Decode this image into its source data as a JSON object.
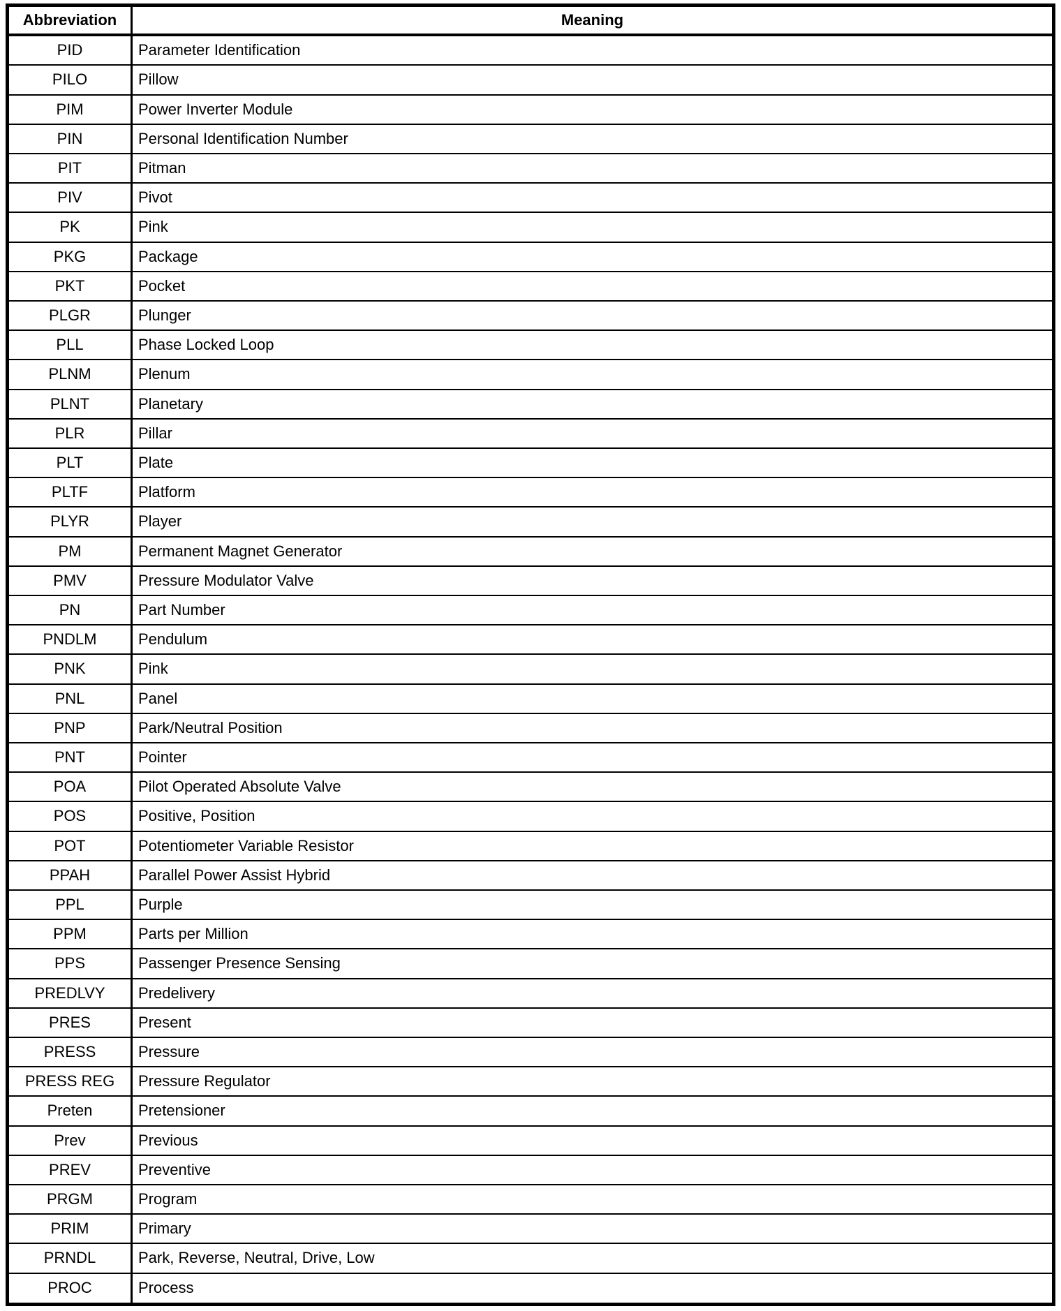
{
  "table": {
    "headers": [
      "Abbreviation",
      "Meaning"
    ],
    "rows": [
      [
        "PID",
        "Parameter Identification"
      ],
      [
        "PILO",
        "Pillow"
      ],
      [
        "PIM",
        "Power Inverter Module"
      ],
      [
        "PIN",
        "Personal Identification Number"
      ],
      [
        "PIT",
        "Pitman"
      ],
      [
        "PIV",
        "Pivot"
      ],
      [
        "PK",
        "Pink"
      ],
      [
        "PKG",
        "Package"
      ],
      [
        "PKT",
        "Pocket"
      ],
      [
        "PLGR",
        "Plunger"
      ],
      [
        "PLL",
        "Phase Locked Loop"
      ],
      [
        "PLNM",
        "Plenum"
      ],
      [
        "PLNT",
        "Planetary"
      ],
      [
        "PLR",
        "Pillar"
      ],
      [
        "PLT",
        "Plate"
      ],
      [
        "PLTF",
        "Platform"
      ],
      [
        "PLYR",
        "Player"
      ],
      [
        "PM",
        "Permanent Magnet Generator"
      ],
      [
        "PMV",
        "Pressure Modulator Valve"
      ],
      [
        "PN",
        "Part Number"
      ],
      [
        "PNDLM",
        "Pendulum"
      ],
      [
        "PNK",
        "Pink"
      ],
      [
        "PNL",
        "Panel"
      ],
      [
        "PNP",
        "Park/Neutral Position"
      ],
      [
        "PNT",
        "Pointer"
      ],
      [
        "POA",
        "Pilot Operated Absolute Valve"
      ],
      [
        "POS",
        "Positive, Position"
      ],
      [
        "POT",
        "Potentiometer Variable Resistor"
      ],
      [
        "PPAH",
        "Parallel Power Assist Hybrid"
      ],
      [
        "PPL",
        "Purple"
      ],
      [
        "PPM",
        "Parts per Million"
      ],
      [
        "PPS",
        "Passenger Presence Sensing"
      ],
      [
        "PREDLVY",
        "Predelivery"
      ],
      [
        "PRES",
        "Present"
      ],
      [
        "PRESS",
        "Pressure"
      ],
      [
        "PRESS REG",
        "Pressure Regulator"
      ],
      [
        "Preten",
        "Pretensioner"
      ],
      [
        "Prev",
        "Previous"
      ],
      [
        "PREV",
        "Preventive"
      ],
      [
        "PRGM",
        "Program"
      ],
      [
        "PRIM",
        "Primary"
      ],
      [
        "PRNDL",
        "Park, Reverse, Neutral, Drive, Low"
      ],
      [
        "PROC",
        "Process"
      ]
    ]
  }
}
